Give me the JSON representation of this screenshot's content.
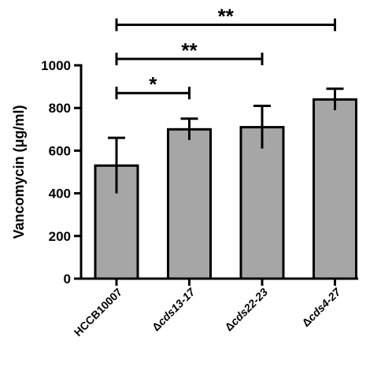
{
  "chart_data": {
    "type": "bar",
    "title": "",
    "xlabel": "",
    "ylabel": "Vancomycin (μg/ml)",
    "ylim": [
      0,
      1000
    ],
    "yticks": [
      0,
      200,
      400,
      600,
      800,
      1000
    ],
    "grid": false,
    "categories": [
      "HCCB10007",
      "Δcds13-17",
      "Δcds22-23",
      "Δcds4-27"
    ],
    "values": [
      530,
      700,
      710,
      840
    ],
    "errors": [
      130,
      50,
      100,
      50
    ],
    "bar_color": "#a6a6a6",
    "significance": [
      {
        "from": 0,
        "to": 1,
        "label": "*",
        "level": 870
      },
      {
        "from": 0,
        "to": 2,
        "label": "**",
        "level": 1030
      },
      {
        "from": 0,
        "to": 3,
        "label": "**",
        "level": 1190
      }
    ]
  }
}
